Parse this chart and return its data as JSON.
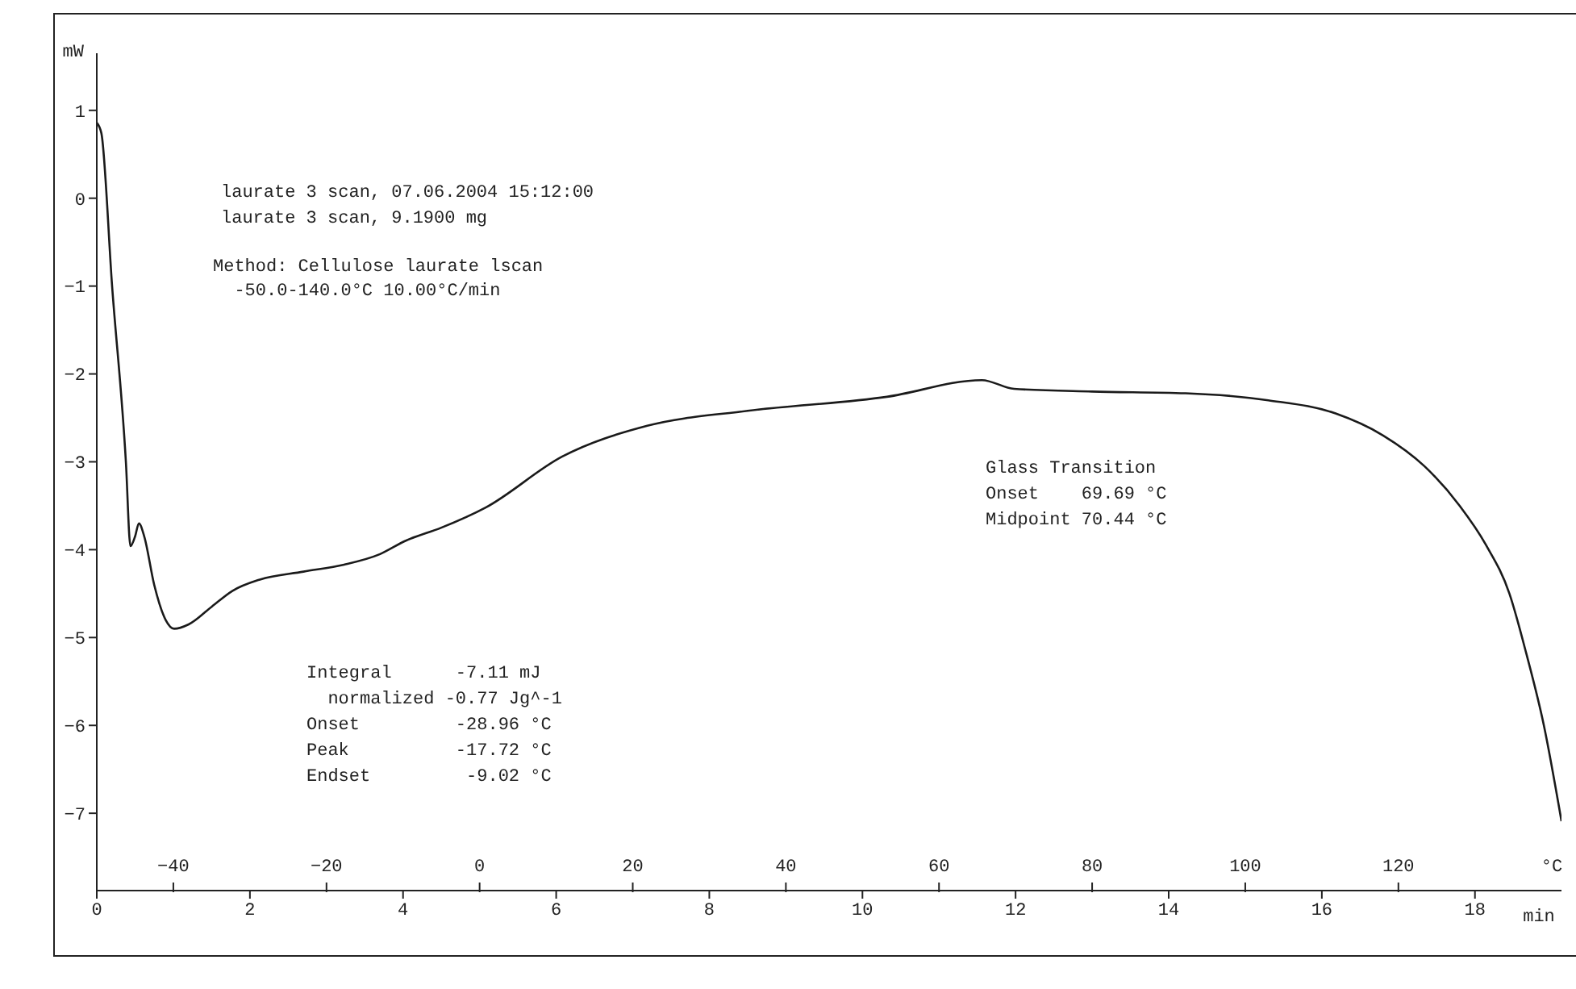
{
  "chart_data": {
    "type": "line",
    "xlabel": "min",
    "ylabel": "mW",
    "x2label": "°C",
    "x": [
      0,
      0.06,
      0.2,
      0.38,
      0.44,
      0.5,
      0.55,
      0.62,
      0.75,
      0.9,
      1.01,
      1.2,
      1.5,
      1.77,
      2.13,
      2.7,
      3.23,
      3.7,
      4.03,
      4.5,
      5.08,
      6.08,
      7.19,
      8.5,
      10.32,
      11.56,
      11.98,
      13.0,
      14.22,
      15.3,
      16.18,
      16.8,
      17.34,
      17.8,
      18.14,
      18.45,
      18.67,
      18.9,
      19.13
    ],
    "series": [
      {
        "color": "#1a1a1a",
        "values": [
          0.86,
          0.74,
          -1.0,
          -3.0,
          -3.96,
          -3.85,
          -3.7,
          -3.85,
          -4.4,
          -4.8,
          -4.9,
          -4.85,
          -4.65,
          -4.47,
          -4.34,
          -4.25,
          -4.17,
          -4.05,
          -3.9,
          -3.75,
          -3.52,
          -2.94,
          -2.59,
          -2.42,
          -2.26,
          -2.07,
          -2.17,
          -2.2,
          -2.22,
          -2.3,
          -2.45,
          -2.7,
          -3.05,
          -3.5,
          -3.94,
          -4.5,
          -5.18,
          -6.0,
          -7.09
        ]
      }
    ],
    "xlim": [
      0,
      19.13
    ],
    "xticks": [
      0,
      2,
      4,
      6,
      8,
      10,
      12,
      14,
      16,
      18
    ],
    "x2lim": [
      -50,
      141.3
    ],
    "x2ticks": [
      -40,
      -20,
      0,
      20,
      40,
      60,
      80,
      100,
      120
    ],
    "ylim": [
      -7.88,
      1.65
    ],
    "yticks": [
      1,
      0,
      -1,
      -2,
      -3,
      -4,
      -5,
      -6,
      -7
    ],
    "grid": false,
    "legend": false,
    "marker": "none",
    "line_style": "solid",
    "annotations": [
      "laurate 3 scan, 07.06.2004 15:12:00",
      "laurate 3 scan, 9.1900 mg",
      "Method: Cellulose laurate lscan",
      "  -50.0-140.0°C 10.00°C/min",
      "Integral      -7.11 mJ",
      "  normalized -0.77 Jg^-1",
      "Onset         -28.96 °C",
      "Peak          -17.72 °C",
      "Endset         -9.02 °C",
      "Glass Transition",
      "Onset    69.69 °C",
      "Midpoint 70.44 °C"
    ]
  }
}
